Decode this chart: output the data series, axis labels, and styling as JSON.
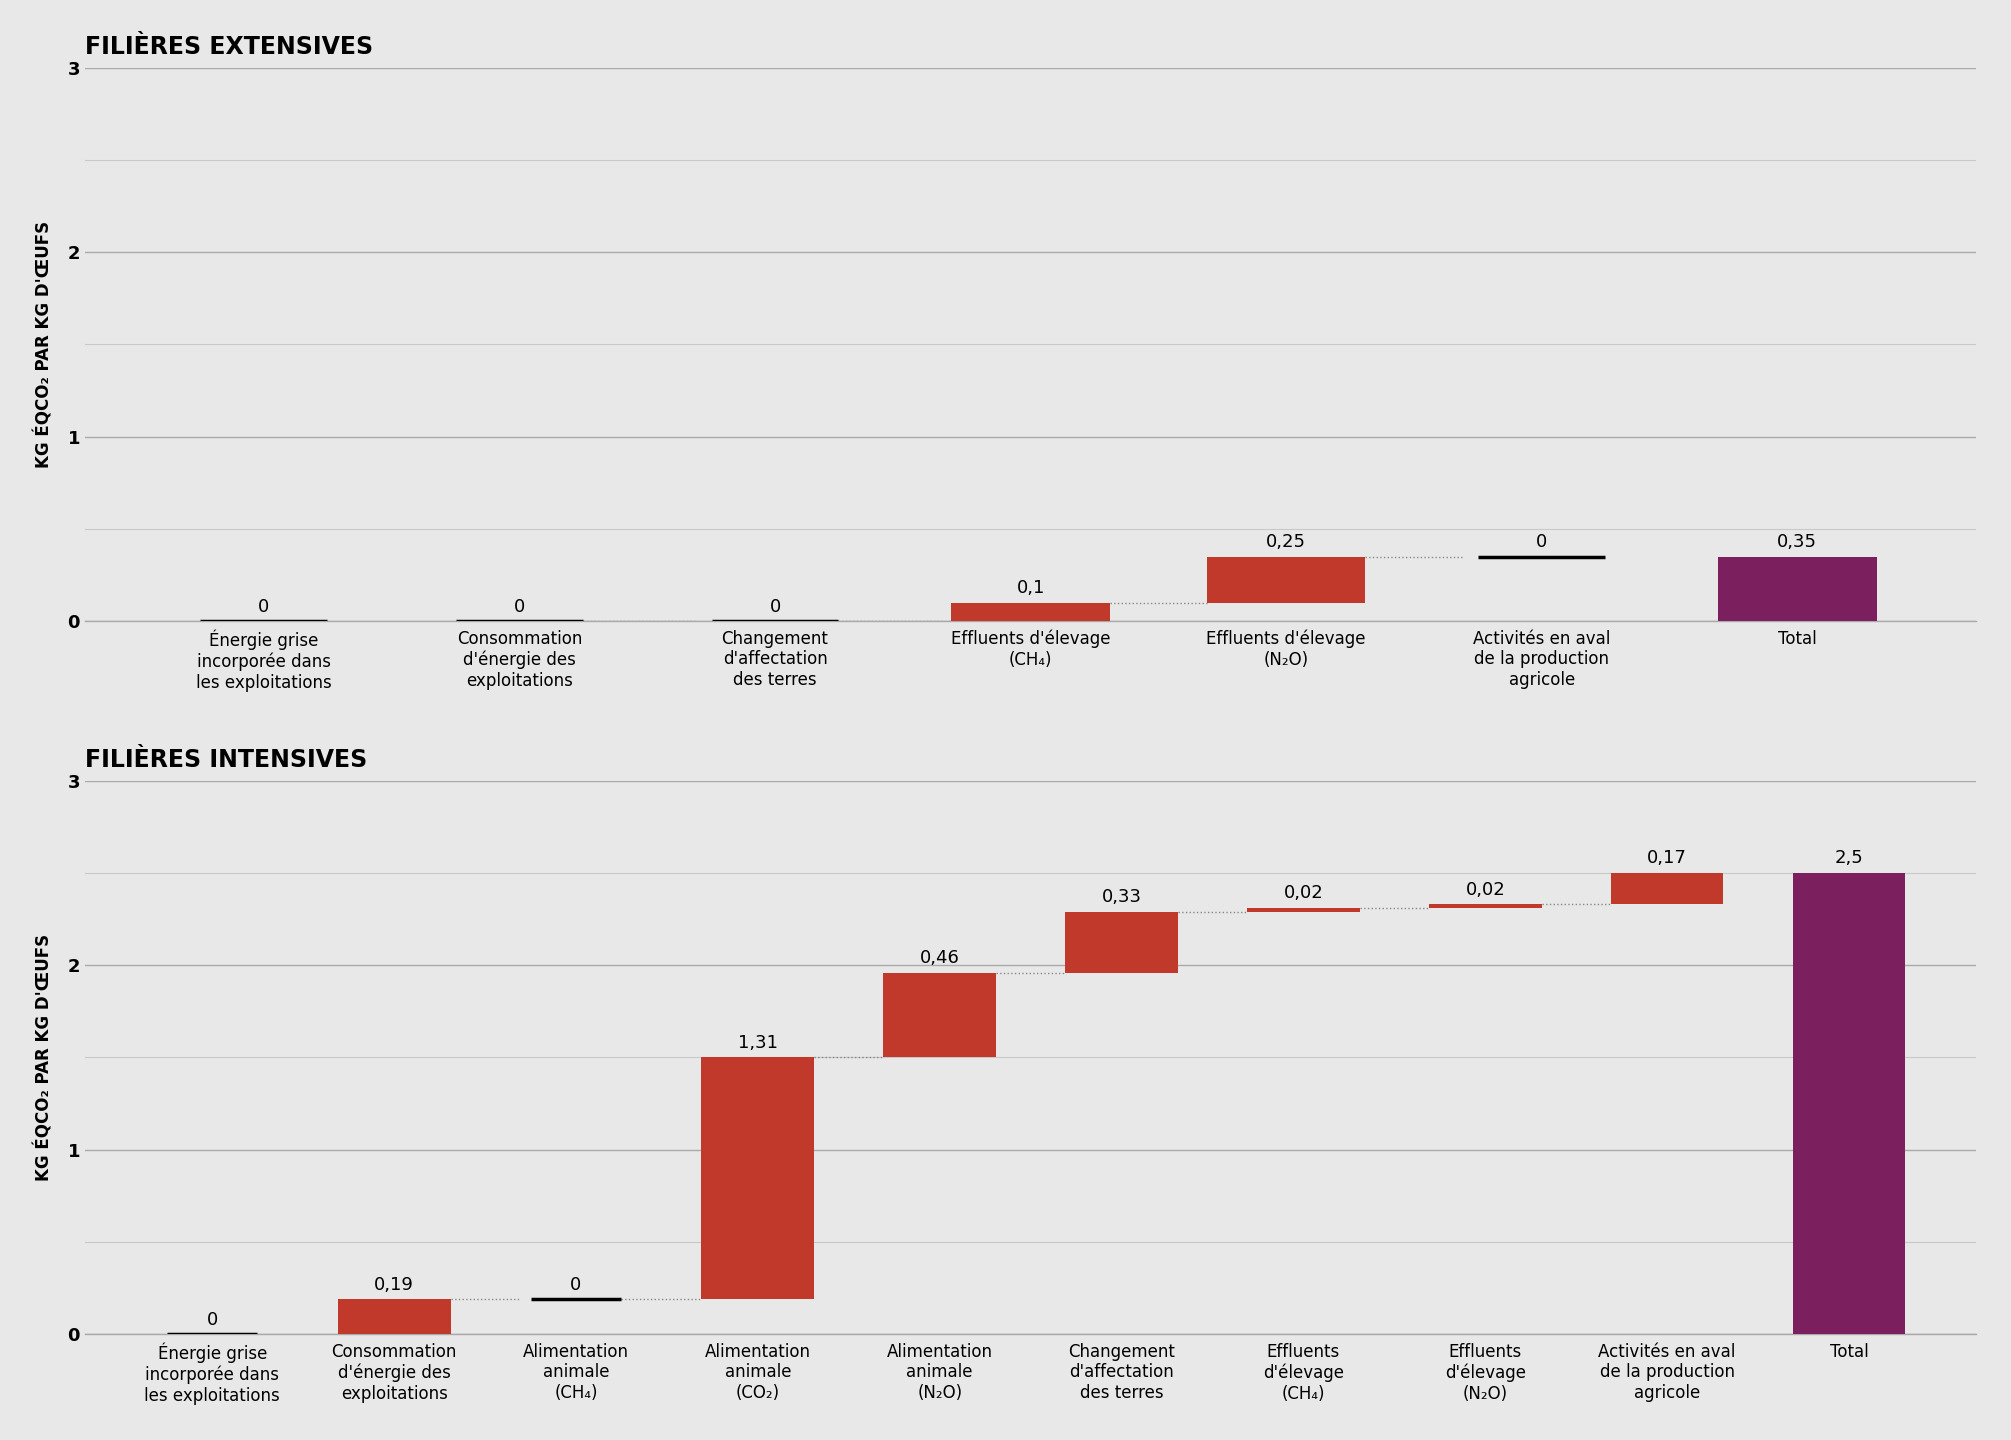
{
  "top_chart": {
    "title": "FILIÈRES EXTENSIVES",
    "categories": [
      "Énergie grise\nincorporée dans\nles exploitations",
      "Consommation\nd'énergie des\nexploitations",
      "Changement\nd'affectation\ndes terres",
      "Effluents d'élevage\n(CH₄)",
      "Effluents d'élevage\n(N₂O)",
      "Activités en aval\nde la production\nagricole",
      "Total"
    ],
    "values": [
      0,
      0,
      0,
      0.1,
      0.25,
      0,
      0.35
    ],
    "labels": [
      "0",
      "0",
      "0",
      "0,1",
      "0,25",
      "0",
      "0,35"
    ],
    "bar_colors": [
      "#c0392b",
      "#c0392b",
      "#c0392b",
      "#c0392b",
      "#c0392b",
      "#c0392b",
      "#7b1f5e"
    ],
    "ylim": [
      0,
      3
    ],
    "yticks": [
      0,
      1,
      2,
      3
    ],
    "ylabel": "KG ÉQCO₂ PAR KG D'ŒUFS"
  },
  "bottom_chart": {
    "title": "FILIÈRES INTENSIVES",
    "categories": [
      "Énergie grise\nincorporée dans\nles exploitations",
      "Consommation\nd'énergie des\nexploitations",
      "Alimentation\nanimale\n(CH₄)",
      "Alimentation\nanimale\n(CO₂)",
      "Alimentation\nanimale\n(N₂O)",
      "Changement\nd'affectation\ndes terres",
      "Effluents\nd'élevage\n(CH₄)",
      "Effluents\nd'élevage\n(N₂O)",
      "Activités en aval\nde la production\nagricole",
      "Total"
    ],
    "values": [
      0,
      0.19,
      0,
      1.31,
      0.46,
      0.33,
      0.02,
      0.02,
      0.17,
      2.5
    ],
    "labels": [
      "0",
      "0,19",
      "0",
      "1,31",
      "0,46",
      "0,33",
      "0,02",
      "0,02",
      "0,17",
      "2,5"
    ],
    "bar_colors": [
      "#c0392b",
      "#c0392b",
      "#c0392b",
      "#c0392b",
      "#c0392b",
      "#c0392b",
      "#c0392b",
      "#c0392b",
      "#c0392b",
      "#7b1f5e"
    ],
    "ylim": [
      0,
      3
    ],
    "yticks": [
      0,
      1,
      2,
      3
    ],
    "ylabel": "KG ÉQCO₂ PAR KG D'ŒUFS"
  },
  "background_color": "#e8e8e8",
  "bar_red": "#c0392b",
  "bar_purple": "#7b1f5e",
  "title_fontsize": 17,
  "label_fontsize": 12,
  "tick_fontsize": 13,
  "ylabel_fontsize": 12,
  "value_fontsize": 13,
  "grid_color": "#aaaaaa",
  "grid_color_minor": "#c8c8c8"
}
